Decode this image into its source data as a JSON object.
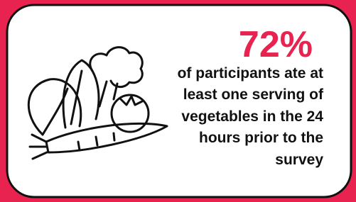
{
  "stat": "72%",
  "description": [
    "of participants ate at",
    "least one serving of",
    "vegetables in the 24",
    "hours prior to the",
    "survey"
  ]
}
